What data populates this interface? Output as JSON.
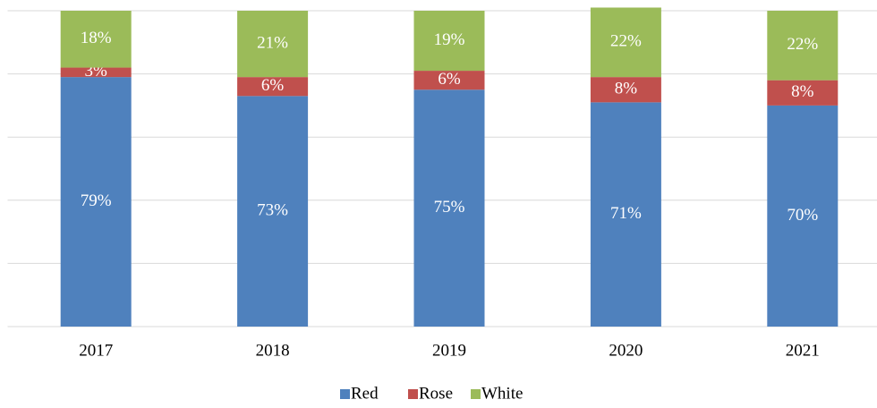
{
  "chart_data": {
    "type": "stacked_bar",
    "categories": [
      "2017",
      "2018",
      "2019",
      "2020",
      "2021"
    ],
    "series": [
      {
        "name": "Red",
        "color": "#4f81bd",
        "values": [
          79,
          73,
          75,
          71,
          70
        ],
        "value_labels": [
          "79%",
          "73%",
          "75%",
          "71%",
          "70%"
        ]
      },
      {
        "name": "Rose",
        "color": "#c0504d",
        "values": [
          3,
          6,
          6,
          8,
          8
        ],
        "value_labels": [
          "3%",
          "6%",
          "6%",
          "8%",
          "8%"
        ]
      },
      {
        "name": "White",
        "color": "#9bbb59",
        "values": [
          18,
          21,
          19,
          22,
          22
        ],
        "value_labels": [
          "18%",
          "21%",
          "19%",
          "22%",
          "22%"
        ]
      }
    ],
    "ylim": [
      0,
      100
    ],
    "yticks": [
      0,
      20,
      40,
      60,
      80,
      100
    ],
    "grid": true,
    "legend": "bottom"
  }
}
